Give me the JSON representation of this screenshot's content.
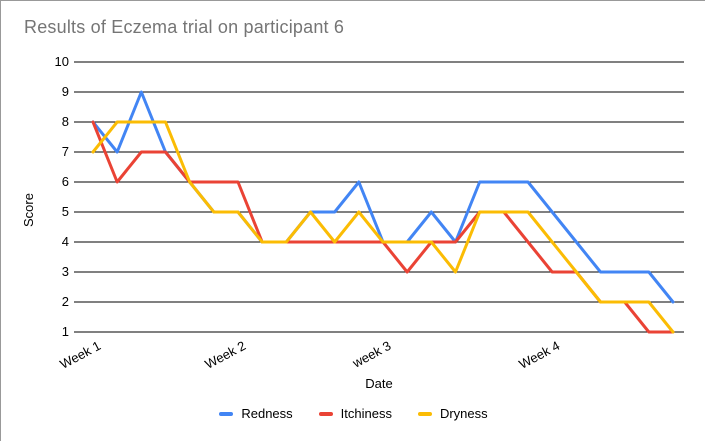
{
  "window": {
    "background": "#ffffff",
    "border_color": "#999999"
  },
  "chart_data": {
    "type": "line",
    "title": "Results of Eczema trial on participant 6",
    "xlabel": "Date",
    "ylabel": "Score",
    "n_points": 25,
    "ylim": [
      1,
      10
    ],
    "y_ticks": [
      1,
      2,
      3,
      4,
      5,
      6,
      7,
      8,
      9,
      10
    ],
    "grid": "horizontal",
    "gridline_color": "#000000",
    "legend_position": "bottom",
    "x_tick_labels": [
      {
        "index": 0,
        "label": "Week 1"
      },
      {
        "index": 6,
        "label": "Week 2"
      },
      {
        "index": 12,
        "label": "week 3"
      },
      {
        "index": 19,
        "label": "Week 4"
      }
    ],
    "series": [
      {
        "name": "Redness",
        "color": "#4285F4",
        "values": [
          8,
          7,
          9,
          7,
          6,
          5,
          5,
          4,
          4,
          5,
          5,
          6,
          4,
          4,
          5,
          4,
          6,
          6,
          6,
          5,
          4,
          3,
          3,
          3,
          2
        ]
      },
      {
        "name": "Itchiness",
        "color": "#EA4335",
        "values": [
          8,
          6,
          7,
          7,
          6,
          6,
          6,
          4,
          4,
          4,
          4,
          4,
          4,
          3,
          4,
          4,
          5,
          5,
          4,
          3,
          3,
          2,
          2,
          1,
          1
        ]
      },
      {
        "name": "Dryness",
        "color": "#FBBC04",
        "values": [
          7,
          8,
          8,
          8,
          6,
          5,
          5,
          4,
          4,
          5,
          4,
          5,
          4,
          4,
          4,
          3,
          5,
          5,
          5,
          4,
          3,
          2,
          2,
          2,
          1
        ]
      }
    ],
    "title_color": "#757575",
    "text_color": "#000000"
  }
}
